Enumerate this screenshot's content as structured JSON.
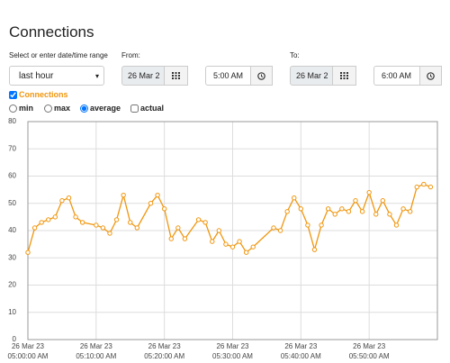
{
  "header": {
    "title": "Connections"
  },
  "form": {
    "range_label": "Select or enter date/time range",
    "range_value": "last hour",
    "from_label": "From:",
    "from_date": "26 Mar 2",
    "from_time": "5:00 AM",
    "to_label": "To:",
    "to_date": "26 Mar 2",
    "to_time": "6:00 AM",
    "aggregation_options": [
      "min",
      "max",
      "average"
    ],
    "aggregation": "average",
    "actual_label": "actual"
  },
  "chart_data": {
    "type": "line",
    "x": [
      "2023-03-26T05:00:00",
      "2023-03-26T05:01:00",
      "2023-03-26T05:02:00",
      "2023-03-26T05:03:00",
      "2023-03-26T05:04:00",
      "2023-03-26T05:05:00",
      "2023-03-26T05:06:00",
      "2023-03-26T05:07:00",
      "2023-03-26T05:08:00",
      "2023-03-26T05:10:00",
      "2023-03-26T05:11:00",
      "2023-03-26T05:12:00",
      "2023-03-26T05:13:00",
      "2023-03-26T05:14:00",
      "2023-03-26T05:15:00",
      "2023-03-26T05:16:00",
      "2023-03-26T05:18:00",
      "2023-03-26T05:19:00",
      "2023-03-26T05:20:00",
      "2023-03-26T05:21:00",
      "2023-03-26T05:22:00",
      "2023-03-26T05:23:00",
      "2023-03-26T05:25:00",
      "2023-03-26T05:26:00",
      "2023-03-26T05:27:00",
      "2023-03-26T05:28:00",
      "2023-03-26T05:29:00",
      "2023-03-26T05:30:00",
      "2023-03-26T05:31:00",
      "2023-03-26T05:32:00",
      "2023-03-26T05:33:00",
      "2023-03-26T05:36:00",
      "2023-03-26T05:37:00",
      "2023-03-26T05:38:00",
      "2023-03-26T05:39:00",
      "2023-03-26T05:40:00",
      "2023-03-26T05:41:00",
      "2023-03-26T05:42:00",
      "2023-03-26T05:43:00",
      "2023-03-26T05:44:00",
      "2023-03-26T05:45:00",
      "2023-03-26T05:46:00",
      "2023-03-26T05:47:00",
      "2023-03-26T05:48:00",
      "2023-03-26T05:49:00",
      "2023-03-26T05:50:00",
      "2023-03-26T05:51:00",
      "2023-03-26T05:52:00",
      "2023-03-26T05:53:00",
      "2023-03-26T05:54:00",
      "2023-03-26T05:55:00",
      "2023-03-26T05:56:00",
      "2023-03-26T05:57:00",
      "2023-03-26T05:58:00",
      "2023-03-26T05:59:00"
    ],
    "series": [
      {
        "name": "Connections",
        "color": "#f0960e",
        "values": [
          32,
          41,
          43,
          44,
          45,
          51,
          52,
          45,
          43,
          42,
          41,
          39,
          44,
          53,
          43,
          41,
          50,
          53,
          48,
          37,
          41,
          37,
          44,
          43,
          36,
          40,
          35,
          34,
          36,
          32,
          34,
          41,
          40,
          47,
          52,
          48,
          42,
          33,
          42,
          48,
          46,
          48,
          47,
          51,
          47,
          54,
          46,
          51,
          46,
          42,
          48,
          47,
          56,
          57,
          56
        ]
      }
    ],
    "xlim": [
      "2023-03-26T05:00:00",
      "2023-03-26T06:00:00"
    ],
    "xticks": [
      {
        "value": "2023-03-26T05:00:00",
        "label": "26 Mar 23",
        "time": "05:00:00 AM"
      },
      {
        "value": "2023-03-26T05:10:00",
        "label": "26 Mar 23",
        "time": "05:10:00 AM"
      },
      {
        "value": "2023-03-26T05:20:00",
        "label": "26 Mar 23",
        "time": "05:20:00 AM"
      },
      {
        "value": "2023-03-26T05:30:00",
        "label": "26 Mar 23",
        "time": "05:30:00 AM"
      },
      {
        "value": "2023-03-26T05:40:00",
        "label": "26 Mar 23",
        "time": "05:40:00 AM"
      },
      {
        "value": "2023-03-26T05:50:00",
        "label": "26 Mar 23",
        "time": "05:50:00 AM"
      }
    ],
    "ylim": [
      0,
      80
    ],
    "yticks": [
      0,
      10,
      20,
      30,
      40,
      50,
      60,
      70,
      80
    ],
    "grid": true
  }
}
